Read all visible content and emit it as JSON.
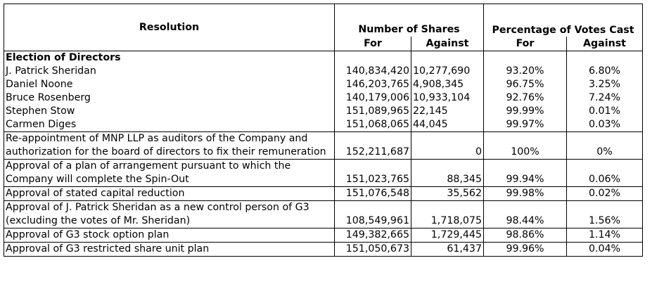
{
  "headers": {
    "resolution": "Resolution",
    "shares": "Number of Shares",
    "percent": "Percentage of Votes Cast",
    "shares_for": "For",
    "shares_against": "Against",
    "pct_for": "For",
    "pct_against": "Against"
  },
  "section": "Election of Directors",
  "rows": [
    {
      "label": "J. Patrick Sheridan",
      "for": "140,834,420",
      "against": "10,277,690",
      "pct_for": "93.20%",
      "pct_against": "6.80%"
    },
    {
      "label": "Daniel Noone",
      "for": "146,203,765",
      "against": "4,908,345",
      "pct_for": "96.75%",
      "pct_against": "3.25%"
    },
    {
      "label": "Bruce Rosenberg",
      "for": "140,179,006",
      "against": "10,933,104",
      "pct_for": "92.76%",
      "pct_against": "7.24%"
    },
    {
      "label": "Stephen Stow",
      "for": "151,089,965",
      "against": "22,145",
      "pct_for": "99.99%",
      "pct_against": "0.01%"
    },
    {
      "label": "Carmen Diges",
      "for": "151,068,065",
      "against": "44,045",
      "pct_for": "99.97%",
      "pct_against": "0.03%"
    },
    {
      "label": "Re-appointment of MNP LLP as auditors of the Company and authorization for the board of directors to fix their remuneration",
      "for": "152,211,687",
      "against": "0",
      "pct_for": "100%",
      "pct_against": "0%"
    },
    {
      "label": "Approval of a plan of arrangement pursuant to which the Company will complete the Spin-Out",
      "for": "151,023,765",
      "against": "88,345",
      "pct_for": "99.94%",
      "pct_against": "0.06%"
    },
    {
      "label": "Approval of stated capital reduction",
      "for": "151,076,548",
      "against": "35,562",
      "pct_for": "99.98%",
      "pct_against": "0.02%"
    },
    {
      "label": "Approval of J. Patrick Sheridan as a new control person of G3 (excluding the votes of Mr. Sheridan)",
      "for": "108,549,961",
      "against": "1,718,075",
      "pct_for": "98.44%",
      "pct_against": "1.56%"
    },
    {
      "label": "Approval of G3 stock option plan",
      "for": "149,382,665",
      "against": "1,729,445",
      "pct_for": "98.86%",
      "pct_against": "1.14%"
    },
    {
      "label": "Approval of G3 restricted share unit plan",
      "for": "151,050,673",
      "against": "61,437",
      "pct_for": "99.96%",
      "pct_against": "0.04%"
    }
  ]
}
